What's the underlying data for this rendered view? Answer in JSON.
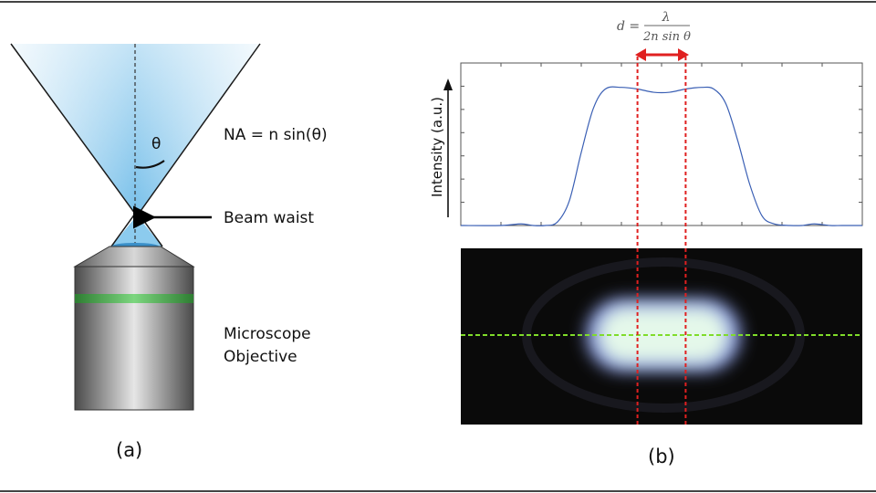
{
  "panel_a": {
    "caption": "(a)",
    "na_formula": "NA = n sin(θ)",
    "theta_symbol": "θ",
    "beam_waist_label": "Beam waist",
    "objective_label_line1": "Microscope",
    "objective_label_line2": "Objective"
  },
  "panel_b": {
    "caption": "(b)",
    "formula": {
      "lhs": "d =",
      "numerator": "λ",
      "denominator": "2n sin θ"
    },
    "ylabel": "Intensity (a.u.)"
  },
  "colors": {
    "cone_light": "#dceef9",
    "cone_mid": "#7cc2ea",
    "objective_gray": "#8c8c8c",
    "green_band": "#4caf50",
    "red_marker": "#e02020",
    "curve_blue": "#3a5fb4",
    "green_line": "#7fdc2a",
    "image_bg": "#0a0a0a"
  },
  "chart_data": {
    "type": "line",
    "xlabel": "",
    "ylabel": "Intensity (a.u.)",
    "xlim": [
      0,
      100
    ],
    "ylim": [
      0,
      1.0
    ],
    "grid": false,
    "series": [
      {
        "x": [
          0,
          10,
          15,
          18,
          21,
          24,
          27,
          30,
          33,
          36,
          40,
          44,
          48,
          52,
          56,
          60,
          63,
          66,
          69,
          72,
          75,
          78,
          82,
          85,
          88,
          92,
          95,
          100
        ],
        "values": [
          0,
          0,
          0.01,
          0,
          0,
          0.02,
          0.15,
          0.45,
          0.72,
          0.84,
          0.85,
          0.84,
          0.82,
          0.82,
          0.84,
          0.85,
          0.84,
          0.75,
          0.52,
          0.25,
          0.06,
          0.01,
          0,
          0,
          0.01,
          0,
          0,
          0
        ]
      }
    ],
    "markers_x": [
      44,
      56
    ]
  }
}
